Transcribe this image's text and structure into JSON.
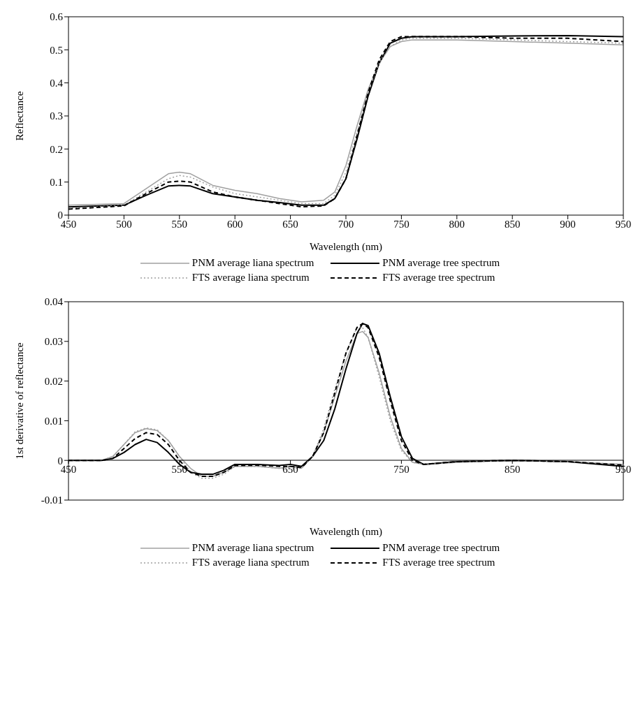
{
  "chart_data": [
    {
      "type": "line",
      "xlabel": "Wavelength (nm)",
      "ylabel": "Reflectance",
      "x": [
        450,
        500,
        520,
        540,
        550,
        560,
        580,
        600,
        620,
        640,
        660,
        680,
        690,
        700,
        710,
        720,
        730,
        740,
        750,
        760,
        800,
        850,
        900,
        950
      ],
      "series": [
        {
          "name": "PNM average liana spectrum",
          "color": "#a0a0a0",
          "line_style": "solid",
          "values": [
            0.03,
            0.035,
            0.08,
            0.125,
            0.13,
            0.125,
            0.09,
            0.075,
            0.065,
            0.05,
            0.04,
            0.045,
            0.07,
            0.15,
            0.27,
            0.38,
            0.46,
            0.51,
            0.525,
            0.53,
            0.53,
            0.525,
            0.52,
            0.515
          ]
        },
        {
          "name": "PNM average tree spectrum",
          "color": "#000000",
          "line_style": "solid",
          "values": [
            0.025,
            0.03,
            0.06,
            0.088,
            0.09,
            0.088,
            0.065,
            0.055,
            0.045,
            0.038,
            0.03,
            0.03,
            0.05,
            0.11,
            0.23,
            0.36,
            0.46,
            0.52,
            0.535,
            0.54,
            0.54,
            0.542,
            0.543,
            0.54
          ]
        },
        {
          "name": "FTS average liana spectrum",
          "color": "#a0a0a0",
          "line_style": "dotted",
          "values": [
            0.02,
            0.03,
            0.07,
            0.11,
            0.12,
            0.115,
            0.085,
            0.065,
            0.055,
            0.045,
            0.035,
            0.035,
            0.06,
            0.13,
            0.25,
            0.37,
            0.46,
            0.51,
            0.53,
            0.535,
            0.535,
            0.53,
            0.525,
            0.52
          ]
        },
        {
          "name": "FTS average tree spectrum",
          "color": "#000000",
          "line_style": "dashed",
          "values": [
            0.018,
            0.028,
            0.065,
            0.1,
            0.103,
            0.1,
            0.07,
            0.055,
            0.045,
            0.035,
            0.025,
            0.028,
            0.05,
            0.11,
            0.24,
            0.37,
            0.47,
            0.525,
            0.54,
            0.54,
            0.54,
            0.535,
            0.535,
            0.525
          ]
        }
      ],
      "xlim": [
        450,
        950
      ],
      "xticks": [
        450,
        500,
        550,
        600,
        650,
        700,
        750,
        800,
        850,
        900,
        950
      ],
      "ylim": [
        0,
        0.6
      ],
      "yticks": [
        0,
        0.1,
        0.2,
        0.3,
        0.4,
        0.5,
        0.6
      ],
      "grid": false,
      "legend": "bottom",
      "marker": "none"
    },
    {
      "type": "line",
      "xlabel": "Wavelength (nm)",
      "ylabel": "1st derivative of reflectance",
      "x": [
        450,
        480,
        490,
        500,
        510,
        520,
        530,
        540,
        550,
        560,
        570,
        580,
        590,
        600,
        620,
        640,
        650,
        660,
        670,
        680,
        690,
        700,
        710,
        715,
        720,
        730,
        740,
        750,
        760,
        770,
        800,
        850,
        900,
        950
      ],
      "series": [
        {
          "name": "PNM average liana spectrum",
          "color": "#a0a0a0",
          "line_style": "solid",
          "values": [
            0,
            0,
            0.001,
            0.004,
            0.007,
            0.008,
            0.0075,
            0.005,
            0.001,
            -0.002,
            -0.004,
            -0.004,
            -0.003,
            -0.0015,
            -0.0015,
            -0.002,
            -0.0015,
            -0.002,
            0.001,
            0.007,
            0.016,
            0.025,
            0.032,
            0.0325,
            0.031,
            0.022,
            0.011,
            0.003,
            -0.0005,
            -0.001,
            -0.0005,
            0,
            -0.0003,
            -0.001
          ]
        },
        {
          "name": "PNM average tree spectrum",
          "color": "#000000",
          "line_style": "solid",
          "values": [
            0,
            0,
            0.0005,
            0.002,
            0.004,
            0.0053,
            0.0045,
            0.002,
            -0.001,
            -0.003,
            -0.0035,
            -0.0035,
            -0.0025,
            -0.001,
            -0.001,
            -0.0013,
            -0.001,
            -0.0015,
            0.001,
            0.005,
            0.013,
            0.023,
            0.032,
            0.0345,
            0.034,
            0.027,
            0.016,
            0.006,
            0.0005,
            -0.001,
            -0.0003,
            0,
            -0.0003,
            -0.0015
          ]
        },
        {
          "name": "FTS average liana spectrum",
          "color": "#a0a0a0",
          "line_style": "dotted",
          "values": [
            0,
            0,
            0.001,
            0.004,
            0.0072,
            0.0082,
            0.0077,
            0.005,
            0.001,
            -0.003,
            -0.0045,
            -0.0045,
            -0.0035,
            -0.0015,
            -0.0015,
            -0.002,
            -0.002,
            -0.002,
            0.001,
            0.008,
            0.018,
            0.027,
            0.0335,
            0.0335,
            0.031,
            0.021,
            0.01,
            0.0025,
            -0.0005,
            -0.001,
            -0.0005,
            0,
            -0.0003,
            -0.001
          ]
        },
        {
          "name": "FTS average tree spectrum",
          "color": "#000000",
          "line_style": "dashed",
          "values": [
            0,
            0,
            0.0005,
            0.003,
            0.0055,
            0.007,
            0.0065,
            0.004,
            0,
            -0.003,
            -0.004,
            -0.004,
            -0.003,
            -0.0013,
            -0.0012,
            -0.0015,
            -0.0015,
            -0.0018,
            0.001,
            0.007,
            0.017,
            0.027,
            0.0335,
            0.0345,
            0.0335,
            0.026,
            0.015,
            0.005,
            0,
            -0.001,
            -0.0003,
            0,
            -0.0003,
            -0.0012
          ]
        }
      ],
      "xlim": [
        450,
        950
      ],
      "xticks": [
        450,
        550,
        650,
        750,
        850,
        950
      ],
      "ylim": [
        -0.01,
        0.04
      ],
      "yticks": [
        -0.01,
        0,
        0.01,
        0.02,
        0.03,
        0.04
      ],
      "grid": false,
      "legend": "bottom",
      "marker": "none"
    }
  ]
}
